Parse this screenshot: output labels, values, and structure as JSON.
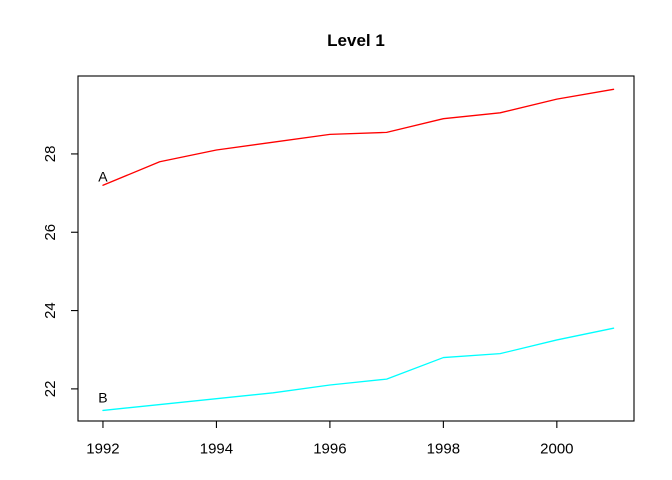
{
  "figure": {
    "background": "#FFFFFF",
    "title": "Level 1"
  },
  "chart_data": {
    "type": "line",
    "title": "Level 1",
    "xlabel": "",
    "ylabel": "",
    "x": [
      1992,
      1993,
      1994,
      1995,
      1996,
      1997,
      1998,
      1999,
      2000,
      2001
    ],
    "series": [
      {
        "name": "A",
        "color": "#FF0000",
        "values": [
          27.2,
          27.8,
          28.1,
          28.3,
          28.5,
          28.55,
          28.9,
          29.05,
          29.4,
          29.65
        ]
      },
      {
        "name": "B",
        "color": "#00FFFF",
        "values": [
          21.45,
          21.6,
          21.75,
          21.9,
          22.1,
          22.25,
          22.8,
          22.9,
          23.25,
          23.55
        ]
      }
    ],
    "point_labels": [
      {
        "text": "A",
        "x": 1992,
        "y": 27.2,
        "dy": -4
      },
      {
        "text": "B",
        "x": 1992,
        "y": 21.45,
        "dy": -8
      }
    ],
    "x_ticks": [
      1992,
      1994,
      1996,
      1998,
      2000
    ],
    "y_ticks": [
      22,
      24,
      26,
      28
    ],
    "xlim": [
      1991.56,
      2001.36
    ],
    "ylim": [
      21.18,
      29.99
    ],
    "grid": false,
    "legend": "none",
    "axis_color": "#000000",
    "tick_label_color": "#000000"
  }
}
